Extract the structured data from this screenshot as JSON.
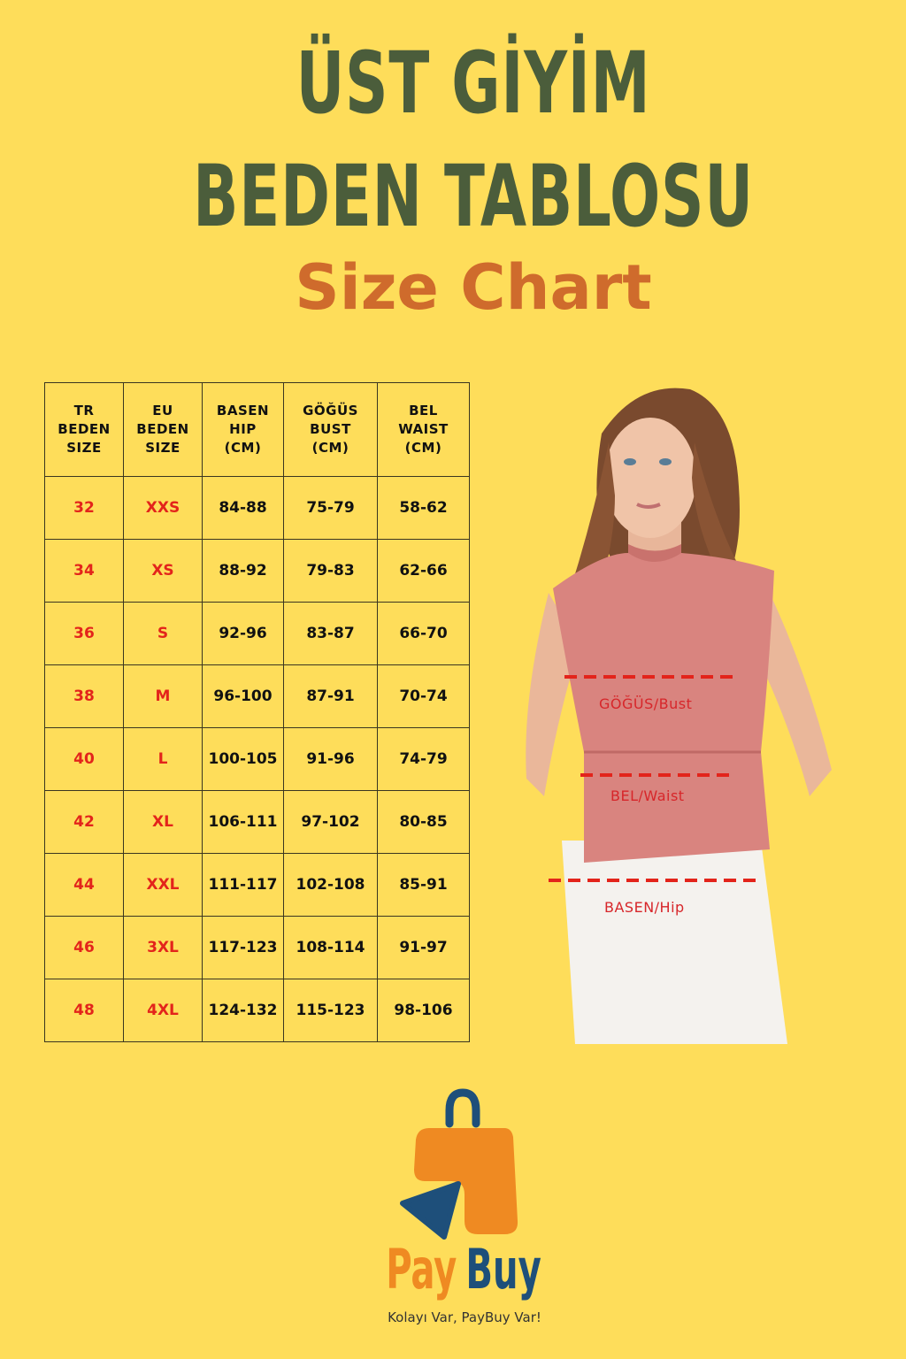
{
  "title_line1": "ÜST GİYİM",
  "title_line2": "BEDEN TABLOSU",
  "subtitle": "Size Chart",
  "table": {
    "headers": [
      "TR\nBEDEN\nSIZE",
      "EU\nBEDEN\nSIZE",
      "BASEN\nHIP\n(CM)",
      "GÖĞÜS\nBUST\n(CM)",
      "BEL\nWAIST\n(CM)"
    ],
    "rows": [
      [
        "32",
        "XXS",
        "84-88",
        "75-79",
        "58-62"
      ],
      [
        "34",
        "XS",
        "88-92",
        "79-83",
        "62-66"
      ],
      [
        "36",
        "S",
        "92-96",
        "83-87",
        "66-70"
      ],
      [
        "38",
        "M",
        "96-100",
        "87-91",
        "70-74"
      ],
      [
        "40",
        "L",
        "100-105",
        "91-96",
        "74-79"
      ],
      [
        "42",
        "XL",
        "106-111",
        "97-102",
        "80-85"
      ],
      [
        "44",
        "XXL",
        "111-117",
        "102-108",
        "85-91"
      ],
      [
        "46",
        "3XL",
        "117-123",
        "108-114",
        "91-97"
      ],
      [
        "48",
        "4XL",
        "124-132",
        "115-123",
        "98-106"
      ]
    ]
  },
  "measure_labels": {
    "bust": "GÖĞÜS/Bust",
    "waist": "BEL/Waist",
    "hip": "BASEN/Hip"
  },
  "brand": {
    "pay": "Pay",
    "buy": "Buy",
    "tagline": "Kolayı Var, PayBuy Var!"
  },
  "colors": {
    "background": "#fedd5a",
    "title": "#4b5d3b",
    "subtitle": "#cf6b2c",
    "size_text": "#e3241b",
    "brand_orange": "#ef8a22",
    "brand_blue": "#1e4f7a",
    "measure_line": "#e3241b"
  }
}
